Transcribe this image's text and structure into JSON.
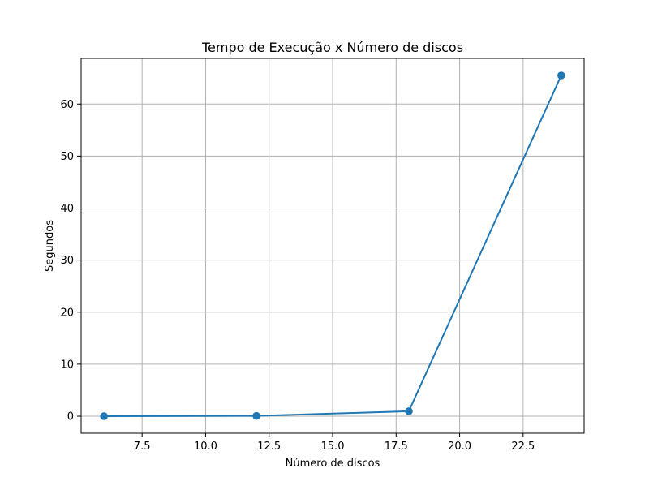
{
  "chart_data": {
    "type": "line",
    "title": "Tempo de Execução x Número de discos",
    "xlabel": "Número de discos",
    "ylabel": "Segundos",
    "x": [
      6,
      12,
      18,
      24
    ],
    "series": [
      {
        "values": [
          0.0,
          0.05,
          0.95,
          65.5
        ],
        "color": "#1f77b4",
        "marker": "circle"
      }
    ],
    "xlim": [
      5.1,
      24.9
    ],
    "ylim": [
      -3.275,
      68.775
    ],
    "xticks": [
      7.5,
      10.0,
      12.5,
      15.0,
      17.5,
      20.0,
      22.5
    ],
    "xtick_labels": [
      "7.5",
      "10.0",
      "12.5",
      "15.0",
      "17.5",
      "20.0",
      "22.5"
    ],
    "yticks": [
      0,
      10,
      20,
      30,
      40,
      50,
      60
    ],
    "ytick_labels": [
      "0",
      "10",
      "20",
      "30",
      "40",
      "50",
      "60"
    ],
    "grid": true
  }
}
